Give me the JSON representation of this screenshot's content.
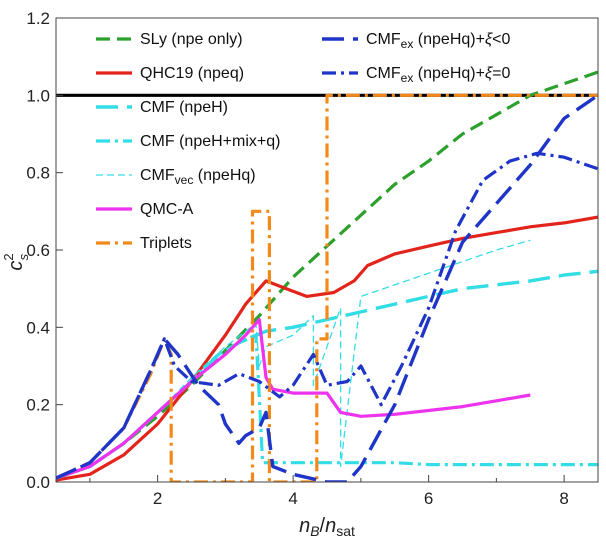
{
  "chart_data": {
    "type": "line",
    "xlabel": {
      "main": "n",
      "sub": "B",
      "sep": "/",
      "main2": "n",
      "sub2": "sat"
    },
    "ylabel": {
      "main": "c",
      "sup": "2",
      "sub": "s"
    },
    "xlim": [
      0.5,
      8.5
    ],
    "ylim": [
      0,
      1.2
    ],
    "xticks": [
      "2",
      "4",
      "6",
      "8"
    ],
    "xtick_values": [
      2,
      4,
      6,
      8
    ],
    "yticks": [
      "0.0",
      "0.2",
      "0.4",
      "0.6",
      "0.8",
      "1.0",
      "1.2"
    ],
    "ytick_values": [
      0,
      0.2,
      0.4,
      0.6,
      0.8,
      1.0,
      1.2
    ],
    "grid": false,
    "legend_placement": "top-left and top-right",
    "reference_line": {
      "y": 1.0,
      "color": "#000000"
    },
    "series": [
      {
        "name": "SLy (npe only)",
        "color": "#2ca02c",
        "style": "dashed",
        "legend_col": 0,
        "legend_parts": [
          {
            "t": "SLy (npe only)"
          }
        ],
        "x": [
          0.5,
          1.0,
          1.5,
          2.0,
          2.5,
          3.0,
          3.5,
          4.0,
          4.5,
          5.0,
          5.5,
          6.0,
          6.5,
          7.0,
          7.5,
          8.0,
          8.5
        ],
        "y": [
          0.01,
          0.04,
          0.1,
          0.17,
          0.25,
          0.34,
          0.43,
          0.53,
          0.61,
          0.69,
          0.77,
          0.83,
          0.9,
          0.95,
          1.0,
          1.03,
          1.06
        ]
      },
      {
        "name": "QHC19 (npeq)",
        "color": "#e3241b",
        "style": "solid",
        "legend_col": 0,
        "legend_parts": [
          {
            "t": "QHC19 (npeq)"
          }
        ],
        "x": [
          0.5,
          1.0,
          1.5,
          2.0,
          2.5,
          3.0,
          3.3,
          3.6,
          3.9,
          4.2,
          4.6,
          4.9,
          5.1,
          5.5,
          6.0,
          6.5,
          7.0,
          7.5,
          8.0,
          8.5
        ],
        "y": [
          0.005,
          0.02,
          0.07,
          0.15,
          0.26,
          0.38,
          0.46,
          0.52,
          0.5,
          0.48,
          0.49,
          0.52,
          0.56,
          0.59,
          0.61,
          0.63,
          0.645,
          0.66,
          0.67,
          0.685
        ]
      },
      {
        "name": "CMF (npeH)",
        "color": "#33dde6",
        "style": "longdash",
        "legend_col": 0,
        "legend_parts": [
          {
            "t": "CMF (npeH)"
          }
        ],
        "x": [
          0.5,
          1.0,
          1.5,
          2.0,
          2.5,
          2.9,
          3.2,
          3.6,
          4.0,
          4.5,
          5.0,
          5.5,
          6.0,
          6.5,
          7.0,
          7.5,
          8.0,
          8.5
        ],
        "y": [
          0.01,
          0.04,
          0.1,
          0.18,
          0.26,
          0.33,
          0.36,
          0.39,
          0.4,
          0.42,
          0.44,
          0.46,
          0.48,
          0.5,
          0.51,
          0.52,
          0.535,
          0.545
        ]
      },
      {
        "name": "CMF (npeH+mix+q)",
        "color": "#33dde6",
        "style": "dashdot",
        "legend_col": 0,
        "legend_parts": [
          {
            "t": "CMF (npeH+mix+q)"
          }
        ],
        "x": [
          0.5,
          1.0,
          1.5,
          2.0,
          2.5,
          2.9,
          3.2,
          3.45,
          3.5,
          3.55,
          3.7,
          4.0,
          4.5,
          5.0,
          5.5,
          6.0,
          6.5,
          7.0,
          7.5,
          8.0,
          8.5
        ],
        "y": [
          0.01,
          0.04,
          0.1,
          0.18,
          0.26,
          0.33,
          0.36,
          0.38,
          0.22,
          0.05,
          0.05,
          0.05,
          0.05,
          0.05,
          0.05,
          0.045,
          0.045,
          0.045,
          0.045,
          0.045,
          0.045
        ]
      },
      {
        "name": "CMFvec (npeHq)",
        "color": "#33dde6",
        "style": "thin-dashed",
        "legend_col": 0,
        "legend_parts": [
          {
            "t": "CMF"
          },
          {
            "t": "vec",
            "sub": true
          },
          {
            "t": " (npeHq)"
          }
        ],
        "x": [
          0.5,
          1.0,
          1.5,
          2.0,
          2.5,
          3.0,
          3.3,
          3.45,
          3.5,
          3.6,
          4.0,
          4.3,
          4.3,
          4.7,
          4.7,
          5.0,
          5.5,
          6.0,
          6.5,
          7.0,
          7.5
        ],
        "y": [
          0.01,
          0.04,
          0.1,
          0.18,
          0.27,
          0.35,
          0.39,
          0.41,
          0.3,
          0.35,
          0.38,
          0.43,
          0.25,
          0.45,
          0.04,
          0.48,
          0.51,
          0.54,
          0.57,
          0.6,
          0.625
        ]
      },
      {
        "name": "QMC-A",
        "color": "#ee33ee",
        "style": "solid",
        "legend_col": 0,
        "legend_parts": [
          {
            "t": "QMC-A"
          }
        ],
        "x": [
          0.5,
          1.0,
          1.5,
          2.0,
          2.5,
          3.0,
          3.3,
          3.5,
          3.6,
          3.7,
          4.0,
          4.5,
          4.7,
          5.0,
          5.5,
          6.0,
          6.5,
          7.0,
          7.5
        ],
        "y": [
          0.01,
          0.04,
          0.1,
          0.18,
          0.26,
          0.33,
          0.38,
          0.42,
          0.27,
          0.24,
          0.23,
          0.23,
          0.18,
          0.17,
          0.175,
          0.185,
          0.195,
          0.21,
          0.225
        ]
      },
      {
        "name": "Triplets",
        "color": "#f28a1b",
        "style": "dashdot",
        "legend_col": 0,
        "legend_parts": [
          {
            "t": "Triplets"
          }
        ],
        "x": [
          0.5,
          1.0,
          1.5,
          1.9,
          2.1,
          2.2,
          2.2,
          3.4,
          3.4,
          3.65,
          3.65,
          4.35,
          4.35,
          4.5,
          4.5,
          8.5
        ],
        "y": [
          0.01,
          0.05,
          0.14,
          0.28,
          0.37,
          0.33,
          0.0,
          0.0,
          0.7,
          0.7,
          0.0,
          0.0,
          0.37,
          0.37,
          1.0,
          1.0
        ]
      },
      {
        "name": "CMFex (npeHq)+ξ<0",
        "color": "#1f35c8",
        "style": "longdash",
        "legend_col": 1,
        "legend_parts": [
          {
            "t": "CMF"
          },
          {
            "t": "ex",
            "sub": true
          },
          {
            "t": " (npeHq)+"
          },
          {
            "t": "ξ",
            "it": true
          },
          {
            "t": "<0"
          }
        ],
        "x": [
          0.5,
          1.0,
          1.5,
          1.9,
          2.1,
          2.3,
          2.6,
          2.9,
          3.0,
          3.2,
          3.3,
          3.5,
          3.6,
          3.7,
          4.0,
          4.5,
          4.8,
          5.0,
          5.5,
          6.0,
          6.5,
          7.0,
          7.5,
          8.0,
          8.5
        ],
        "y": [
          0.01,
          0.05,
          0.14,
          0.29,
          0.37,
          0.33,
          0.25,
          0.2,
          0.15,
          0.1,
          0.12,
          0.14,
          0.18,
          0.04,
          0.02,
          0.0,
          0.0,
          0.04,
          0.2,
          0.42,
          0.62,
          0.72,
          0.82,
          0.94,
          1.0
        ]
      },
      {
        "name": "CMFex (npeHq)+ξ=0",
        "color": "#1f35c8",
        "style": "dashdot",
        "legend_col": 1,
        "legend_parts": [
          {
            "t": "CMF"
          },
          {
            "t": "ex",
            "sub": true
          },
          {
            "t": " (npeHq)+"
          },
          {
            "t": "ξ",
            "it": true
          },
          {
            "t": "=0"
          }
        ],
        "x": [
          0.5,
          1.0,
          1.5,
          1.9,
          2.1,
          2.25,
          2.5,
          2.9,
          3.2,
          3.5,
          3.8,
          4.0,
          4.3,
          4.5,
          4.8,
          5.0,
          5.3,
          5.6,
          6.0,
          6.4,
          6.8,
          7.2,
          7.6,
          8.0,
          8.5
        ],
        "y": [
          0.01,
          0.05,
          0.14,
          0.29,
          0.37,
          0.3,
          0.26,
          0.25,
          0.28,
          0.26,
          0.22,
          0.25,
          0.33,
          0.25,
          0.26,
          0.3,
          0.2,
          0.3,
          0.45,
          0.65,
          0.78,
          0.83,
          0.85,
          0.84,
          0.81
        ]
      }
    ]
  }
}
